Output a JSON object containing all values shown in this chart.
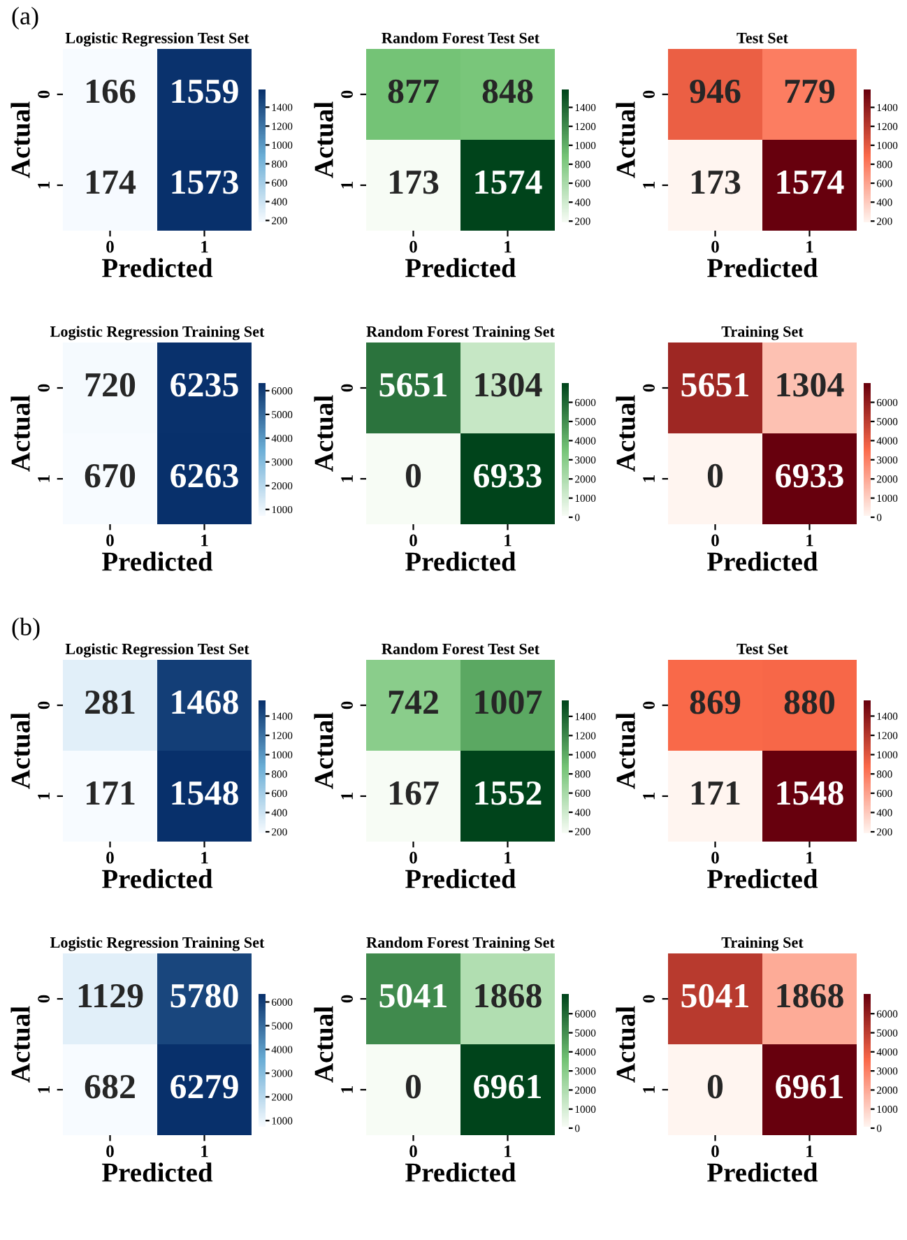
{
  "chart_data": [
    {
      "type": "heatmap",
      "title": "Logistic Regression Test Set",
      "annotations": [
        "(a)"
      ],
      "categories": [
        "0",
        "1"
      ],
      "y_categories": [
        "0",
        "1"
      ],
      "xlabel": "Predicted",
      "ylabel": "Actual",
      "cells": [
        [
          166,
          1559
        ],
        [
          174,
          1573
        ]
      ],
      "data_labels": true,
      "colors": [
        "#f7fbff",
        "#6baed6",
        "#08306b"
      ],
      "clim": [
        166,
        1573
      ],
      "cticks": [
        200,
        400,
        600,
        800,
        1000,
        1200,
        1400
      ]
    },
    {
      "type": "heatmap",
      "title": "Random Forest Test Set",
      "categories": [
        "0",
        "1"
      ],
      "y_categories": [
        "0",
        "1"
      ],
      "xlabel": "Predicted",
      "ylabel": "Actual",
      "cells": [
        [
          877,
          848
        ],
        [
          173,
          1574
        ]
      ],
      "data_labels": true,
      "colors": [
        "#f7fcf5",
        "#74c476",
        "#00441b"
      ],
      "clim": [
        173,
        1574
      ],
      "cticks": [
        200,
        400,
        600,
        800,
        1000,
        1200,
        1400
      ]
    },
    {
      "type": "heatmap",
      "title": "Test Set",
      "categories": [
        "0",
        "1"
      ],
      "y_categories": [
        "0",
        "1"
      ],
      "xlabel": "Predicted",
      "ylabel": "Actual",
      "cells": [
        [
          946,
          779
        ],
        [
          173,
          1574
        ]
      ],
      "data_labels": true,
      "colors": [
        "#fff5f0",
        "#fb6a4a",
        "#67000d"
      ],
      "clim": [
        173,
        1574
      ],
      "cticks": [
        200,
        400,
        600,
        800,
        1000,
        1200,
        1400
      ]
    },
    {
      "type": "heatmap",
      "title": "Logistic Regression Training Set",
      "categories": [
        "0",
        "1"
      ],
      "y_categories": [
        "0",
        "1"
      ],
      "xlabel": "Predicted",
      "ylabel": "Actual",
      "cells": [
        [
          720,
          6235
        ],
        [
          670,
          6263
        ]
      ],
      "data_labels": true,
      "colors": [
        "#f7fbff",
        "#6baed6",
        "#08306b"
      ],
      "clim": [
        670,
        6263
      ],
      "cticks": [
        1000,
        2000,
        3000,
        4000,
        5000,
        6000
      ]
    },
    {
      "type": "heatmap",
      "title": "Random Forest Training Set",
      "categories": [
        "0",
        "1"
      ],
      "y_categories": [
        "0",
        "1"
      ],
      "xlabel": "Predicted",
      "ylabel": "Actual",
      "cells": [
        [
          5651,
          1304
        ],
        [
          0,
          6933
        ]
      ],
      "data_labels": true,
      "colors": [
        "#f7fcf5",
        "#74c476",
        "#00441b"
      ],
      "clim": [
        0,
        6933
      ],
      "cticks": [
        0,
        1000,
        2000,
        3000,
        4000,
        5000,
        6000
      ]
    },
    {
      "type": "heatmap",
      "title": "Training Set",
      "categories": [
        "0",
        "1"
      ],
      "y_categories": [
        "0",
        "1"
      ],
      "xlabel": "Predicted",
      "ylabel": "Actual",
      "cells": [
        [
          5651,
          1304
        ],
        [
          0,
          6933
        ]
      ],
      "data_labels": true,
      "colors": [
        "#fff5f0",
        "#fb6a4a",
        "#67000d"
      ],
      "clim": [
        0,
        6933
      ],
      "cticks": [
        0,
        1000,
        2000,
        3000,
        4000,
        5000,
        6000
      ]
    },
    {
      "type": "heatmap",
      "title": "Logistic Regression Test Set",
      "annotations": [
        "(b)"
      ],
      "categories": [
        "0",
        "1"
      ],
      "y_categories": [
        "0",
        "1"
      ],
      "xlabel": "Predicted",
      "ylabel": "Actual",
      "cells": [
        [
          281,
          1468
        ],
        [
          171,
          1548
        ]
      ],
      "data_labels": true,
      "colors": [
        "#f7fbff",
        "#6baed6",
        "#08306b"
      ],
      "clim": [
        171,
        1548
      ],
      "cticks": [
        200,
        400,
        600,
        800,
        1000,
        1200,
        1400
      ]
    },
    {
      "type": "heatmap",
      "title": "Random Forest Test Set",
      "categories": [
        "0",
        "1"
      ],
      "y_categories": [
        "0",
        "1"
      ],
      "xlabel": "Predicted",
      "ylabel": "Actual",
      "cells": [
        [
          742,
          1007
        ],
        [
          167,
          1552
        ]
      ],
      "data_labels": true,
      "colors": [
        "#f7fcf5",
        "#74c476",
        "#00441b"
      ],
      "clim": [
        167,
        1552
      ],
      "cticks": [
        200,
        400,
        600,
        800,
        1000,
        1200,
        1400
      ]
    },
    {
      "type": "heatmap",
      "title": "Test Set",
      "categories": [
        "0",
        "1"
      ],
      "y_categories": [
        "0",
        "1"
      ],
      "xlabel": "Predicted",
      "ylabel": "Actual",
      "cells": [
        [
          869,
          880
        ],
        [
          171,
          1548
        ]
      ],
      "data_labels": true,
      "colors": [
        "#fff5f0",
        "#fb6a4a",
        "#67000d"
      ],
      "clim": [
        171,
        1548
      ],
      "cticks": [
        200,
        400,
        600,
        800,
        1000,
        1200,
        1400
      ]
    },
    {
      "type": "heatmap",
      "title": "Logistic Regression Training Set",
      "categories": [
        "0",
        "1"
      ],
      "y_categories": [
        "0",
        "1"
      ],
      "xlabel": "Predicted",
      "ylabel": "Actual",
      "cells": [
        [
          1129,
          5780
        ],
        [
          682,
          6279
        ]
      ],
      "data_labels": true,
      "colors": [
        "#f7fbff",
        "#6baed6",
        "#08306b"
      ],
      "clim": [
        682,
        6279
      ],
      "cticks": [
        1000,
        2000,
        3000,
        4000,
        5000,
        6000
      ]
    },
    {
      "type": "heatmap",
      "title": "Random Forest Training Set",
      "categories": [
        "0",
        "1"
      ],
      "y_categories": [
        "0",
        "1"
      ],
      "xlabel": "Predicted",
      "ylabel": "Actual",
      "cells": [
        [
          5041,
          1868
        ],
        [
          0,
          6961
        ]
      ],
      "data_labels": true,
      "colors": [
        "#f7fcf5",
        "#74c476",
        "#00441b"
      ],
      "clim": [
        0,
        6961
      ],
      "cticks": [
        0,
        1000,
        2000,
        3000,
        4000,
        5000,
        6000
      ]
    },
    {
      "type": "heatmap",
      "title": "Training Set",
      "categories": [
        "0",
        "1"
      ],
      "y_categories": [
        "0",
        "1"
      ],
      "xlabel": "Predicted",
      "ylabel": "Actual",
      "cells": [
        [
          5041,
          1868
        ],
        [
          0,
          6961
        ]
      ],
      "data_labels": true,
      "colors": [
        "#fff5f0",
        "#fb6a4a",
        "#67000d"
      ],
      "clim": [
        0,
        6961
      ],
      "cticks": [
        0,
        1000,
        2000,
        3000,
        4000,
        5000,
        6000
      ]
    }
  ]
}
